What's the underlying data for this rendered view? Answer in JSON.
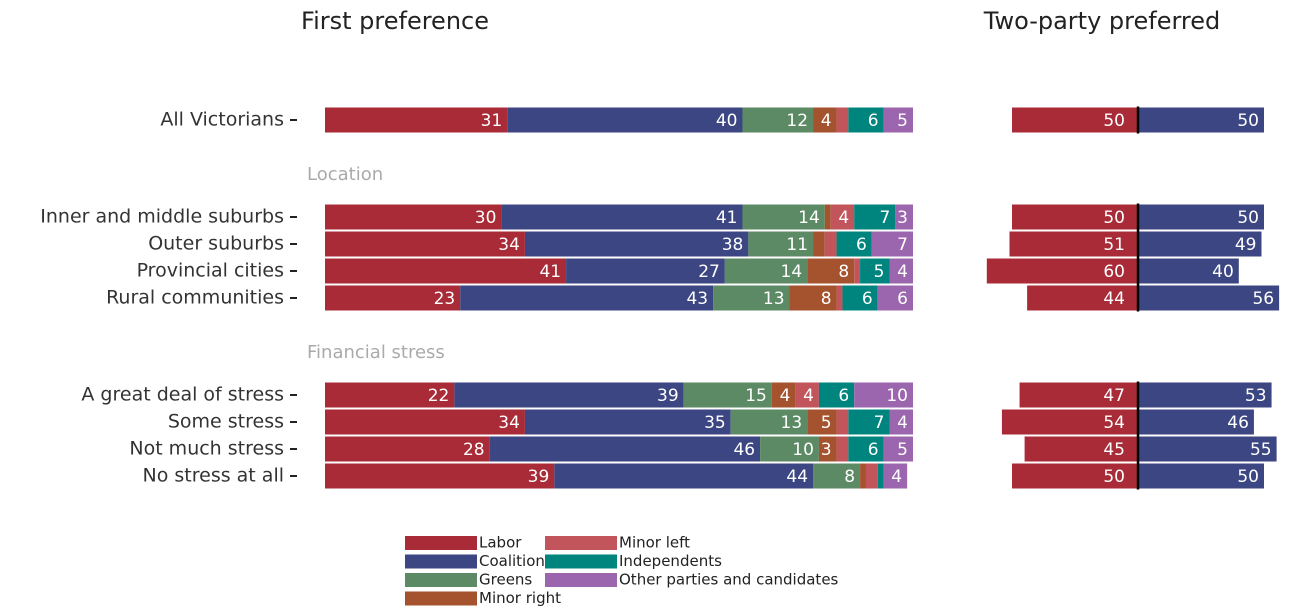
{
  "chart_data": {
    "type": "bar",
    "categories": [
      "All Victorians",
      "Inner and middle suburbs",
      "Outer suburbs",
      "Provincial cities",
      "Rural communities",
      "A great deal of stress",
      "Some stress",
      "Not much stress",
      "No stress at all"
    ],
    "group_labels": [
      null,
      "Location",
      null,
      null,
      null,
      "Financial stress",
      null,
      null,
      null
    ],
    "panels": [
      {
        "type": "stacked-bar",
        "title": "First preference",
        "xlim": [
          0,
          100
        ],
        "series": [
          {
            "name": "Labor",
            "color": "#a82b37",
            "values": [
              31,
              30,
              34,
              41,
              23,
              22,
              34,
              28,
              39
            ]
          },
          {
            "name": "Coalition",
            "color": "#3c4682",
            "values": [
              40,
              41,
              38,
              27,
              43,
              39,
              35,
              46,
              44
            ]
          },
          {
            "name": "Greens",
            "color": "#5b8a64",
            "values": [
              12,
              14,
              11,
              14,
              13,
              15,
              13,
              10,
              8
            ]
          },
          {
            "name": "Minor right",
            "color": "#a5532f",
            "values": [
              4,
              1,
              2,
              8,
              8,
              4,
              5,
              3,
              1
            ]
          },
          {
            "name": "Minor left",
            "color": "#c2545b",
            "values": [
              2,
              4,
              2,
              1,
              1,
              4,
              2,
              2,
              2
            ]
          },
          {
            "name": "Independents",
            "color": "#00847e",
            "values": [
              6,
              7,
              6,
              5,
              6,
              6,
              7,
              6,
              1
            ]
          },
          {
            "name": "Other parties and candidates",
            "color": "#9b66ad",
            "values": [
              5,
              3,
              7,
              4,
              6,
              10,
              4,
              5,
              4
            ]
          }
        ]
      },
      {
        "type": "diverging-bar",
        "title": "Two-party preferred",
        "series": [
          {
            "color": "#a82b37",
            "values": [
              50,
              50,
              51,
              60,
              44,
              47,
              54,
              45,
              50
            ]
          },
          {
            "color": "#3c4682",
            "values": [
              50,
              50,
              49,
              40,
              56,
              53,
              46,
              55,
              50
            ]
          }
        ]
      }
    ]
  }
}
